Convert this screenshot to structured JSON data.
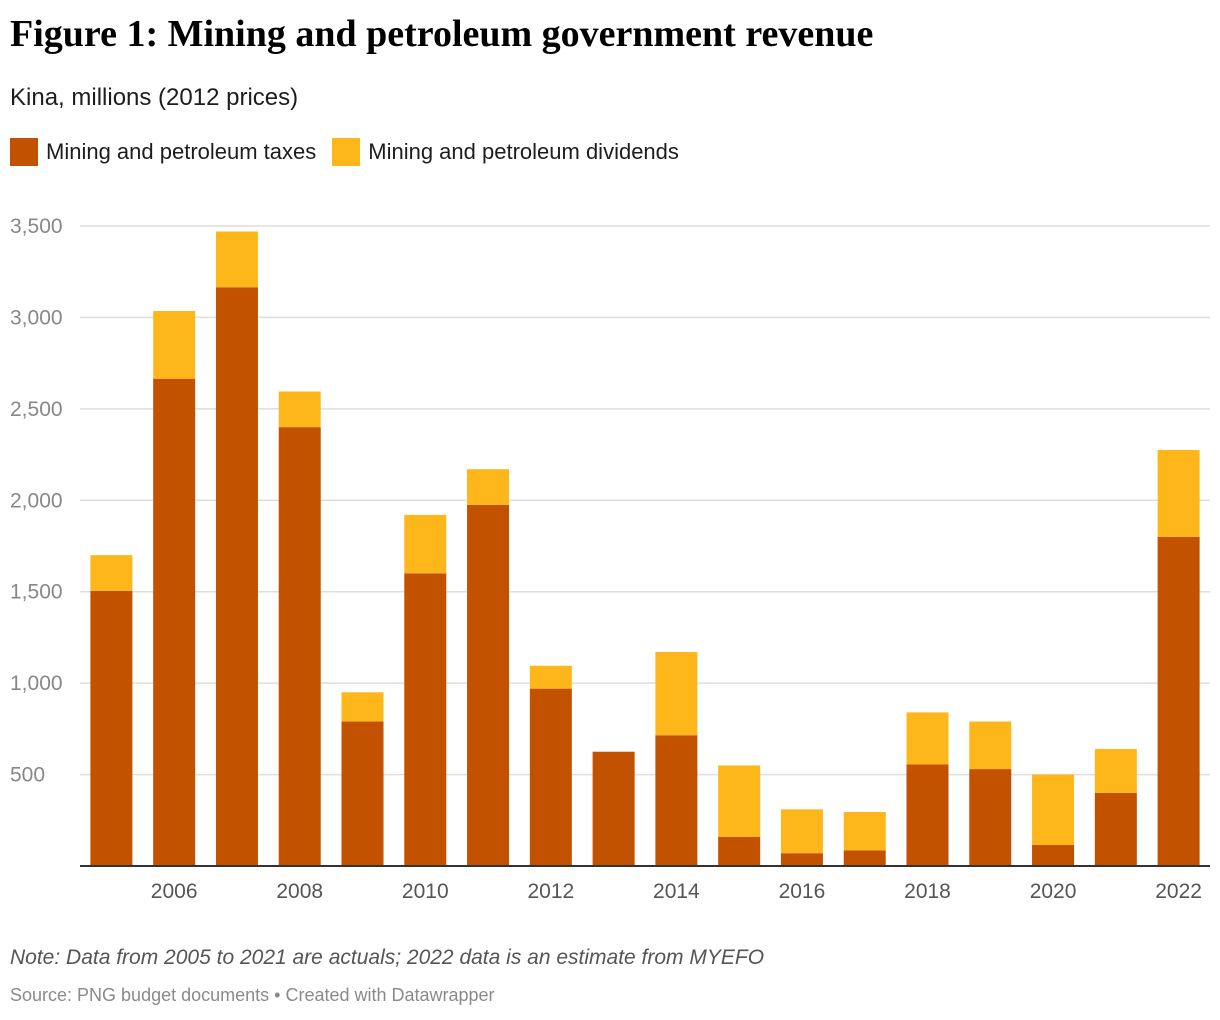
{
  "chart_data": {
    "type": "bar",
    "stacked": true,
    "title": "Figure 1: Mining and petroleum government revenue",
    "subtitle": "Kina, millions (2012 prices)",
    "categories": [
      2005,
      2006,
      2007,
      2008,
      2009,
      2010,
      2011,
      2012,
      2013,
      2014,
      2015,
      2016,
      2017,
      2018,
      2019,
      2020,
      2021,
      2022
    ],
    "x_tick_labels": [
      "2006",
      "2008",
      "2010",
      "2012",
      "2014",
      "2016",
      "2018",
      "2020",
      "2022"
    ],
    "series": [
      {
        "name": "Mining and petroleum taxes",
        "color": "#c25100",
        "values": [
          1505,
          2665,
          3165,
          2400,
          790,
          1600,
          1975,
          970,
          625,
          715,
          160,
          70,
          85,
          555,
          530,
          115,
          400,
          1800
        ]
      },
      {
        "name": "Mining and petroleum dividends",
        "color": "#fdb71b",
        "values": [
          195,
          370,
          305,
          195,
          160,
          320,
          195,
          125,
          0,
          455,
          390,
          240,
          210,
          285,
          260,
          385,
          240,
          475
        ]
      }
    ],
    "y_ticks": [
      500,
      1000,
      1500,
      2000,
      2500,
      3000,
      3500
    ],
    "y_tick_labels": [
      "500",
      "1,000",
      "1,500",
      "2,000",
      "2,500",
      "3,000",
      "3,500"
    ],
    "ylim": [
      0,
      3500
    ],
    "grid": true,
    "legend_position": "top-left",
    "note": "Note: Data from 2005 to 2021 are actuals; 2022 data is an estimate from MYEFO",
    "source": "Source: PNG budget documents • Created with Datawrapper"
  }
}
